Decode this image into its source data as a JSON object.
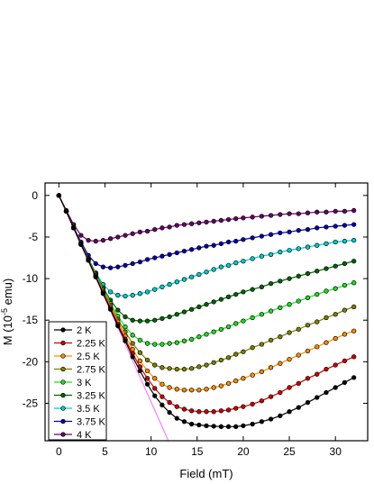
{
  "chart_data": {
    "type": "line",
    "title": "",
    "xlabel": "Field (mT)",
    "ylabel_main": "M (10",
    "ylabel_sup": "-5",
    "ylabel_tail": " emu)",
    "xlim": [
      -1.5,
      33.5
    ],
    "ylim": [
      -29.5,
      1.5
    ],
    "xticks": [
      0,
      5,
      10,
      15,
      20,
      25,
      30
    ],
    "yticks": [
      0,
      -5,
      -10,
      -15,
      -20,
      -25
    ],
    "legend_position": "bottom-left",
    "reference_line": {
      "color": "#ff66ff",
      "x": [
        0,
        12
      ],
      "y": [
        0,
        -29.8
      ]
    },
    "series": [
      {
        "name": "2 K",
        "color": "#000000",
        "x": [
          0,
          0.8,
          1.6,
          2.4,
          3.2,
          4.0,
          4.8,
          5.6,
          6.4,
          7.2,
          8.0,
          8.8,
          9.6,
          10.4,
          11.2,
          12.0,
          12.8,
          13.6,
          14.4,
          15.2,
          16.0,
          16.8,
          17.6,
          18.4,
          19.2,
          20.0,
          21.0,
          22.0,
          23.0,
          24.0,
          25.0,
          26.0,
          27.0,
          28.0,
          29.0,
          30.0,
          31.0,
          32.0
        ],
        "y": [
          0,
          -1.9,
          -3.9,
          -5.9,
          -7.8,
          -9.8,
          -11.8,
          -13.7,
          -15.7,
          -17.5,
          -19.4,
          -21.1,
          -22.7,
          -24.1,
          -25.2,
          -26.1,
          -26.8,
          -27.2,
          -27.5,
          -27.6,
          -27.7,
          -27.75,
          -27.8,
          -27.8,
          -27.8,
          -27.7,
          -27.5,
          -27.2,
          -26.9,
          -26.5,
          -26.0,
          -25.5,
          -24.9,
          -24.3,
          -23.7,
          -23.1,
          -22.5,
          -21.9
        ]
      },
      {
        "name": "2.25 K",
        "color": "#cc0000",
        "x": [
          0,
          0.8,
          1.6,
          2.4,
          3.2,
          4.0,
          4.8,
          5.6,
          6.4,
          7.2,
          8.0,
          8.8,
          9.6,
          10.4,
          11.2,
          12.0,
          12.8,
          13.6,
          14.4,
          15.2,
          16.0,
          16.8,
          17.6,
          18.4,
          19.2,
          20.0,
          21.0,
          22.0,
          23.0,
          24.0,
          25.0,
          26.0,
          27.0,
          28.0,
          29.0,
          30.0,
          31.0,
          32.0
        ],
        "y": [
          0,
          -1.9,
          -3.9,
          -5.9,
          -7.8,
          -9.8,
          -11.7,
          -13.6,
          -15.5,
          -17.3,
          -19.0,
          -20.6,
          -22.0,
          -23.2,
          -24.2,
          -24.9,
          -25.4,
          -25.7,
          -25.9,
          -26.0,
          -26.0,
          -26.0,
          -25.9,
          -25.8,
          -25.6,
          -25.4,
          -25.1,
          -24.7,
          -24.2,
          -23.7,
          -23.1,
          -22.6,
          -22.0,
          -21.5,
          -20.9,
          -20.4,
          -19.9,
          -19.4
        ]
      },
      {
        "name": "2.5 K",
        "color": "#ff8c00",
        "x": [
          0,
          0.8,
          1.6,
          2.4,
          3.2,
          4.0,
          4.8,
          5.6,
          6.4,
          7.2,
          8.0,
          8.8,
          9.6,
          10.4,
          11.2,
          12.0,
          12.8,
          13.6,
          14.4,
          15.2,
          16.0,
          16.8,
          17.6,
          18.4,
          19.2,
          20.0,
          21.0,
          22.0,
          23.0,
          24.0,
          25.0,
          26.0,
          27.0,
          28.0,
          29.0,
          30.0,
          31.0,
          32.0
        ],
        "y": [
          0,
          -1.9,
          -3.9,
          -5.9,
          -7.8,
          -9.7,
          -11.6,
          -13.4,
          -15.2,
          -16.9,
          -18.5,
          -19.9,
          -21.1,
          -22.0,
          -22.7,
          -23.1,
          -23.3,
          -23.4,
          -23.4,
          -23.4,
          -23.3,
          -23.1,
          -22.9,
          -22.6,
          -22.3,
          -22.0,
          -21.6,
          -21.2,
          -20.7,
          -20.2,
          -19.7,
          -19.2,
          -18.7,
          -18.2,
          -17.7,
          -17.2,
          -16.7,
          -16.3
        ]
      },
      {
        "name": "2.75 K",
        "color": "#808000",
        "x": [
          0,
          0.8,
          1.6,
          2.4,
          3.2,
          4.0,
          4.8,
          5.6,
          6.4,
          7.2,
          8.0,
          8.8,
          9.6,
          10.4,
          11.2,
          12.0,
          12.8,
          13.6,
          14.4,
          15.2,
          16.0,
          16.8,
          17.6,
          18.4,
          19.2,
          20.0,
          21.0,
          22.0,
          23.0,
          24.0,
          25.0,
          26.0,
          27.0,
          28.0,
          29.0,
          30.0,
          31.0,
          32.0
        ],
        "y": [
          0,
          -1.9,
          -3.9,
          -5.8,
          -7.7,
          -9.6,
          -11.4,
          -13.2,
          -14.9,
          -16.4,
          -17.8,
          -18.9,
          -19.8,
          -20.4,
          -20.7,
          -20.8,
          -20.9,
          -20.9,
          -20.8,
          -20.6,
          -20.4,
          -20.1,
          -19.8,
          -19.5,
          -19.1,
          -18.8,
          -18.3,
          -17.9,
          -17.4,
          -17.0,
          -16.5,
          -16.1,
          -15.6,
          -15.2,
          -14.7,
          -14.3,
          -13.8,
          -13.4
        ]
      },
      {
        "name": "3 K",
        "color": "#22dd22",
        "x": [
          0,
          0.8,
          1.6,
          2.4,
          3.2,
          4.0,
          4.8,
          5.6,
          6.4,
          7.2,
          8.0,
          8.8,
          9.6,
          10.4,
          11.2,
          12.0,
          12.8,
          13.6,
          14.4,
          15.2,
          16.0,
          16.8,
          17.6,
          18.4,
          19.2,
          20.0,
          21.0,
          22.0,
          23.0,
          24.0,
          25.0,
          26.0,
          27.0,
          28.0,
          29.0,
          30.0,
          31.0,
          32.0
        ],
        "y": [
          0,
          -1.9,
          -3.9,
          -5.8,
          -7.7,
          -9.5,
          -11.3,
          -13.0,
          -14.5,
          -15.8,
          -16.8,
          -17.4,
          -17.8,
          -17.9,
          -17.9,
          -17.8,
          -17.7,
          -17.5,
          -17.3,
          -17.0,
          -16.7,
          -16.4,
          -16.1,
          -15.8,
          -15.4,
          -15.1,
          -14.7,
          -14.3,
          -13.9,
          -13.5,
          -13.1,
          -12.7,
          -12.3,
          -11.9,
          -11.5,
          -11.2,
          -10.8,
          -10.5
        ]
      },
      {
        "name": "3.25 K",
        "color": "#006400",
        "x": [
          0,
          0.8,
          1.6,
          2.4,
          3.2,
          4.0,
          4.8,
          5.6,
          6.4,
          7.2,
          8.0,
          8.8,
          9.6,
          10.4,
          11.2,
          12.0,
          12.8,
          13.6,
          14.4,
          15.2,
          16.0,
          16.8,
          17.6,
          18.4,
          19.2,
          20.0,
          21.0,
          22.0,
          23.0,
          24.0,
          25.0,
          26.0,
          27.0,
          28.0,
          29.0,
          30.0,
          31.0,
          32.0
        ],
        "y": [
          0,
          -1.9,
          -3.9,
          -5.8,
          -7.6,
          -9.4,
          -11.1,
          -12.6,
          -13.8,
          -14.6,
          -15.0,
          -15.1,
          -15.1,
          -15.0,
          -14.8,
          -14.6,
          -14.3,
          -14.0,
          -13.7,
          -13.4,
          -13.1,
          -12.8,
          -12.5,
          -12.2,
          -11.9,
          -11.6,
          -11.3,
          -11.0,
          -10.6,
          -10.3,
          -10.0,
          -9.7,
          -9.4,
          -9.1,
          -8.8,
          -8.5,
          -8.2,
          -7.9
        ]
      },
      {
        "name": "3.5 K",
        "color": "#00cccc",
        "x": [
          0,
          0.8,
          1.6,
          2.4,
          3.2,
          4.0,
          4.8,
          5.6,
          6.4,
          7.2,
          8.0,
          8.8,
          9.6,
          10.4,
          11.2,
          12.0,
          12.8,
          13.6,
          14.4,
          15.2,
          16.0,
          16.8,
          17.6,
          18.4,
          19.2,
          20.0,
          21.0,
          22.0,
          23.0,
          24.0,
          25.0,
          26.0,
          27.0,
          28.0,
          29.0,
          30.0,
          31.0,
          32.0
        ],
        "y": [
          0,
          -1.9,
          -3.9,
          -5.8,
          -7.6,
          -9.3,
          -10.7,
          -11.6,
          -12.0,
          -12.1,
          -12.0,
          -11.8,
          -11.6,
          -11.3,
          -11.0,
          -10.7,
          -10.4,
          -10.1,
          -9.8,
          -9.5,
          -9.2,
          -8.9,
          -8.6,
          -8.4,
          -8.1,
          -7.9,
          -7.6,
          -7.3,
          -7.1,
          -6.8,
          -6.6,
          -6.4,
          -6.2,
          -6.0,
          -5.8,
          -5.6,
          -5.5,
          -5.4
        ]
      },
      {
        "name": "3.75 K",
        "color": "#0000aa",
        "x": [
          0,
          0.8,
          1.6,
          2.4,
          3.2,
          4.0,
          4.8,
          5.6,
          6.4,
          7.2,
          8.0,
          8.8,
          9.6,
          10.4,
          11.2,
          12.0,
          12.8,
          13.6,
          14.4,
          15.2,
          16.0,
          16.8,
          17.6,
          18.4,
          19.2,
          20.0,
          21.0,
          22.0,
          23.0,
          24.0,
          25.0,
          26.0,
          27.0,
          28.0,
          29.0,
          30.0,
          31.0,
          32.0
        ],
        "y": [
          0,
          -1.9,
          -3.8,
          -5.6,
          -7.2,
          -8.2,
          -8.6,
          -8.7,
          -8.6,
          -8.4,
          -8.2,
          -8.0,
          -7.7,
          -7.5,
          -7.3,
          -7.1,
          -6.9,
          -6.7,
          -6.5,
          -6.3,
          -6.1,
          -6.0,
          -5.8,
          -5.6,
          -5.5,
          -5.3,
          -5.1,
          -4.9,
          -4.7,
          -4.5,
          -4.4,
          -4.2,
          -4.1,
          -3.9,
          -3.8,
          -3.7,
          -3.6,
          -3.5
        ]
      },
      {
        "name": "4 K",
        "color": "#660066",
        "x": [
          0,
          0.8,
          1.6,
          2.4,
          3.2,
          4.0,
          4.8,
          5.6,
          6.4,
          7.2,
          8.0,
          8.8,
          9.6,
          10.4,
          11.2,
          12.0,
          12.8,
          13.6,
          14.4,
          15.2,
          16.0,
          16.8,
          17.6,
          18.4,
          19.2,
          20.0,
          21.0,
          22.0,
          23.0,
          24.0,
          25.0,
          26.0,
          27.0,
          28.0,
          29.0,
          30.0,
          31.0,
          32.0
        ],
        "y": [
          0,
          -1.8,
          -3.5,
          -4.8,
          -5.4,
          -5.5,
          -5.4,
          -5.2,
          -5.0,
          -4.8,
          -4.6,
          -4.4,
          -4.3,
          -4.1,
          -3.9,
          -3.8,
          -3.6,
          -3.5,
          -3.4,
          -3.3,
          -3.2,
          -3.1,
          -3.0,
          -2.9,
          -2.8,
          -2.7,
          -2.6,
          -2.5,
          -2.4,
          -2.3,
          -2.2,
          -2.2,
          -2.1,
          -2.0,
          -2.0,
          -1.9,
          -1.9,
          -1.8
        ]
      }
    ]
  }
}
